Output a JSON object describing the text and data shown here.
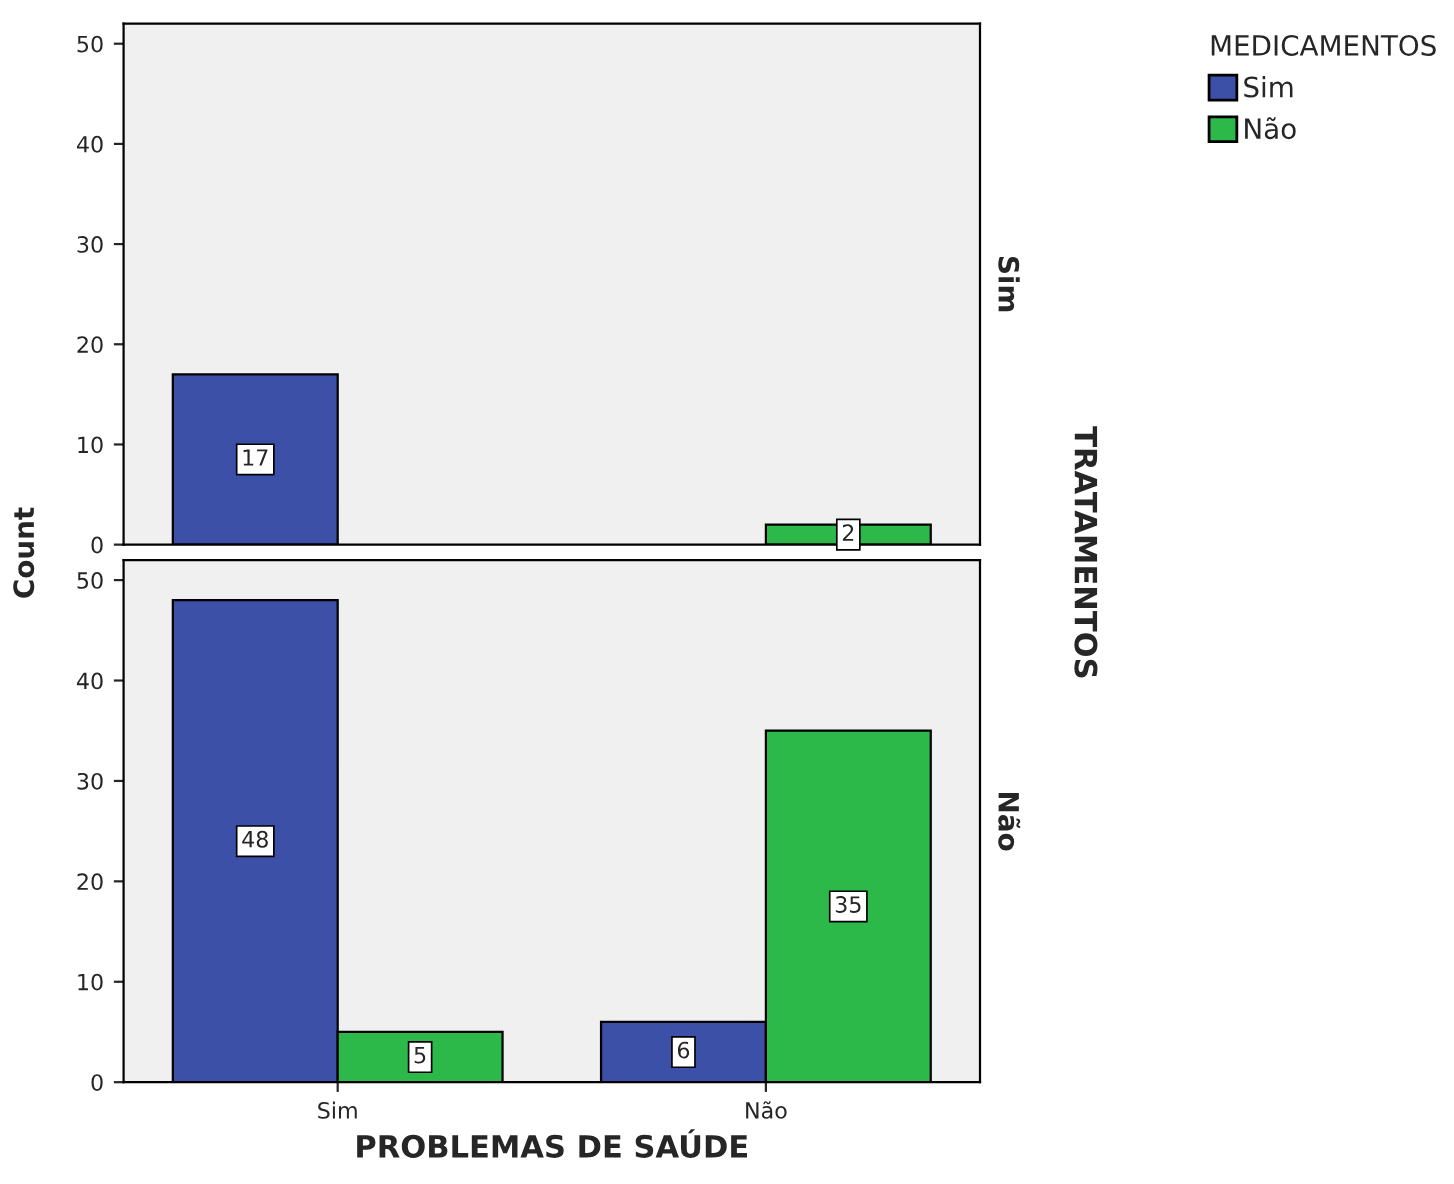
{
  "chart_data": [
    {
      "type": "bar",
      "ylabel": "Count",
      "y2label": "Sim",
      "legend_title": "MEDICAMENTOS",
      "legend": "top right",
      "annotations": [
        "TRATAMENTOS"
      ],
      "ylim": [
        0,
        52
      ],
      "yticks": [
        0,
        10,
        20,
        30,
        40,
        50
      ],
      "tick_labels": "y",
      "data_labels": true,
      "series": [
        {
          "name": "Sim",
          "color": "#3c50a8",
          "values": [
            17,
            null
          ]
        },
        {
          "name": "Não",
          "color": "#2db84a",
          "values": [
            null,
            2
          ]
        }
      ]
    },
    {
      "type": "bar",
      "categories": [
        "Sim",
        "Não"
      ],
      "xlabel": "PROBLEMAS DE SAÚDE",
      "y2label": "Não",
      "ylim": [
        0,
        52
      ],
      "yticks": [
        0,
        10,
        20,
        30,
        40,
        50
      ],
      "data_labels": true,
      "series": [
        {
          "color": "#3c50a8",
          "values": [
            48,
            6
          ]
        },
        {
          "color": "#2db84a",
          "values": [
            5,
            35
          ]
        }
      ]
    }
  ]
}
